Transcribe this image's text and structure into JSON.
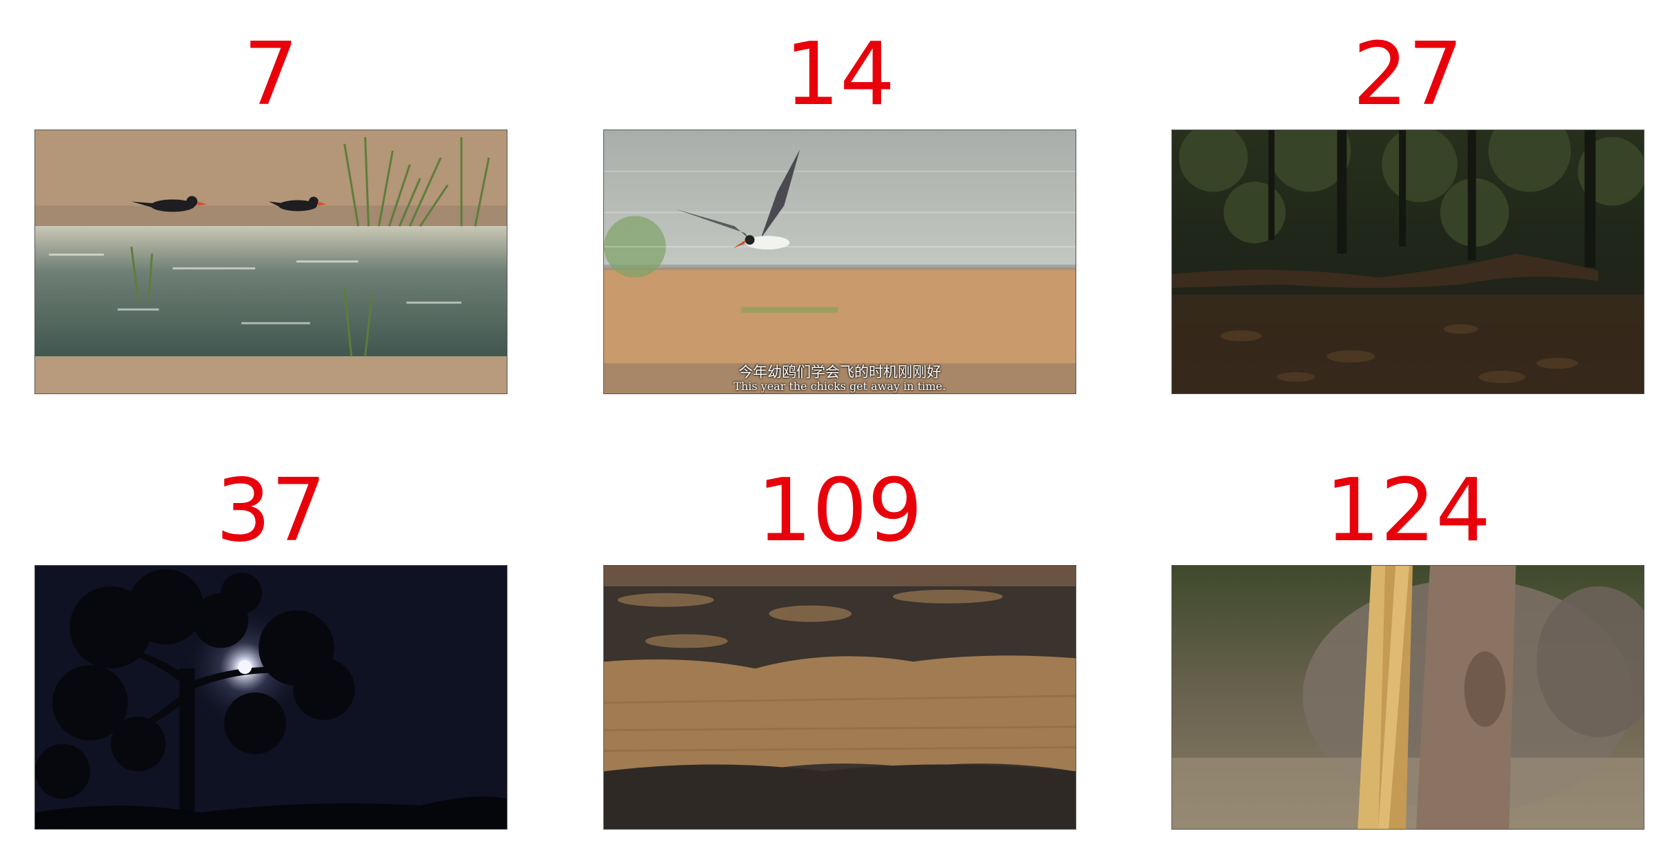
{
  "frames": [
    {
      "label": "7",
      "scene": "two-skimmers-on-sandbar"
    },
    {
      "label": "14",
      "scene": "skimmer-in-flight-over-river",
      "subtitle_zh": "今年幼鸥们学会飞的时机刚刚好",
      "subtitle_en": "This year the chicks get away in time."
    },
    {
      "label": "27",
      "scene": "forest-floor-with-fallen-log"
    },
    {
      "label": "37",
      "scene": "moon-behind-tree-at-night"
    },
    {
      "label": "109",
      "scene": "muddy-riverbank"
    },
    {
      "label": "124",
      "scene": "elephant-behind-tree-trunks"
    }
  ],
  "colors": {
    "label": "#e8000b",
    "background": "#ffffff"
  }
}
